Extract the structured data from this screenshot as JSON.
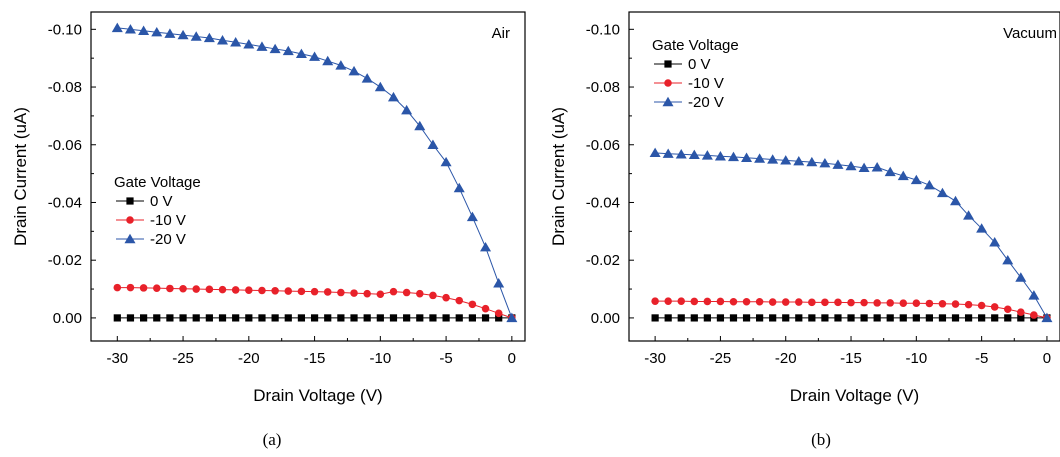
{
  "chart_data": [
    {
      "type": "line",
      "panel_label": "(a)",
      "annotation": "Air",
      "xlabel": "Drain Voltage (V)",
      "ylabel": "Drain Current (uA)",
      "xlim": [
        -32,
        1
      ],
      "ylim": [
        0.008,
        -0.106
      ],
      "x_ticks": [
        -30,
        -25,
        -20,
        -15,
        -10,
        -5,
        0
      ],
      "x_tick_labels": [
        "-30",
        "-25",
        "-20",
        "-15",
        "-10",
        "-5",
        "0"
      ],
      "y_ticks": [
        0.0,
        -0.02,
        -0.04,
        -0.06,
        -0.08,
        -0.1
      ],
      "y_tick_labels": [
        "0.00",
        "-0.02",
        "-0.04",
        "-0.06",
        "-0.08",
        "-0.10"
      ],
      "grid": false,
      "legend": {
        "title": "Gate Voltage",
        "placement": "center-left"
      },
      "x": [
        -30,
        -29,
        -28,
        -27,
        -26,
        -25,
        -24,
        -23,
        -22,
        -21,
        -20,
        -19,
        -18,
        -17,
        -16,
        -15,
        -14,
        -13,
        -12,
        -11,
        -10,
        -9,
        -8,
        -7,
        -6,
        -5,
        -4,
        -3,
        -2,
        -1,
        0
      ],
      "series": [
        {
          "name": "0 V",
          "color": "#000000",
          "marker": "square",
          "values": [
            0,
            0,
            0,
            0,
            0,
            0,
            0,
            0,
            0,
            0,
            0,
            0,
            0,
            0,
            0,
            0,
            0,
            0,
            0,
            0,
            0,
            0,
            0,
            0,
            0,
            0,
            0,
            0,
            0,
            0,
            0
          ]
        },
        {
          "name": "-10 V",
          "color": "#e8212a",
          "marker": "circle",
          "values": [
            -0.0105,
            -0.0105,
            -0.0104,
            -0.0103,
            -0.0102,
            -0.0101,
            -0.01,
            -0.0099,
            -0.0098,
            -0.0097,
            -0.0096,
            -0.0095,
            -0.0094,
            -0.0093,
            -0.0092,
            -0.0091,
            -0.009,
            -0.0088,
            -0.0086,
            -0.0084,
            -0.0082,
            -0.0091,
            -0.0088,
            -0.0084,
            -0.0078,
            -0.007,
            -0.006,
            -0.0047,
            -0.0032,
            -0.0016,
            0
          ]
        },
        {
          "name": "-20 V",
          "color": "#2b56a8",
          "marker": "triangle",
          "values": [
            -0.1005,
            -0.1,
            -0.0995,
            -0.099,
            -0.0985,
            -0.098,
            -0.0975,
            -0.097,
            -0.0962,
            -0.0955,
            -0.0948,
            -0.094,
            -0.0932,
            -0.0925,
            -0.0915,
            -0.0905,
            -0.089,
            -0.0875,
            -0.0855,
            -0.083,
            -0.08,
            -0.0765,
            -0.072,
            -0.0665,
            -0.06,
            -0.054,
            -0.045,
            -0.035,
            -0.0245,
            -0.012,
            0
          ]
        }
      ]
    },
    {
      "type": "line",
      "panel_label": "(b)",
      "annotation": "Vacuum",
      "xlabel": "Drain Voltage (V)",
      "ylabel": "Drain Current (uA)",
      "xlim": [
        -32,
        1
      ],
      "ylim": [
        0.008,
        -0.106
      ],
      "x_ticks": [
        -30,
        -25,
        -20,
        -15,
        -10,
        -5,
        0
      ],
      "x_tick_labels": [
        "-30",
        "-25",
        "-20",
        "-15",
        "-10",
        "-5",
        "0"
      ],
      "y_ticks": [
        0.0,
        -0.02,
        -0.04,
        -0.06,
        -0.08,
        -0.1
      ],
      "y_tick_labels": [
        "0.00",
        "-0.02",
        "-0.04",
        "-0.06",
        "-0.08",
        "-0.10"
      ],
      "grid": false,
      "legend": {
        "title": "Gate Voltage",
        "placement": "top-left"
      },
      "x": [
        -30,
        -29,
        -28,
        -27,
        -26,
        -25,
        -24,
        -23,
        -22,
        -21,
        -20,
        -19,
        -18,
        -17,
        -16,
        -15,
        -14,
        -13,
        -12,
        -11,
        -10,
        -9,
        -8,
        -7,
        -6,
        -5,
        -4,
        -3,
        -2,
        -1,
        0
      ],
      "series": [
        {
          "name": "0 V",
          "color": "#000000",
          "marker": "square",
          "values": [
            0,
            0,
            0,
            0,
            0,
            0,
            0,
            0,
            0,
            0,
            0,
            0,
            0,
            0,
            0,
            0,
            0,
            0,
            0,
            0,
            0,
            0,
            0,
            0,
            0,
            0,
            0,
            0,
            0,
            0,
            0
          ]
        },
        {
          "name": "-10 V",
          "color": "#e8212a",
          "marker": "circle",
          "values": [
            -0.0058,
            -0.0058,
            -0.0058,
            -0.0057,
            -0.0057,
            -0.0057,
            -0.0056,
            -0.0056,
            -0.0056,
            -0.0055,
            -0.0055,
            -0.0055,
            -0.0054,
            -0.0054,
            -0.0054,
            -0.0053,
            -0.0053,
            -0.0052,
            -0.0052,
            -0.0051,
            -0.0051,
            -0.005,
            -0.0049,
            -0.0048,
            -0.0046,
            -0.0043,
            -0.0038,
            -0.003,
            -0.002,
            -0.001,
            0
          ]
        },
        {
          "name": "-20 V",
          "color": "#2b56a8",
          "marker": "triangle",
          "values": [
            -0.0572,
            -0.0569,
            -0.0567,
            -0.0565,
            -0.0563,
            -0.056,
            -0.0558,
            -0.0555,
            -0.0552,
            -0.0549,
            -0.0546,
            -0.0543,
            -0.054,
            -0.0536,
            -0.0531,
            -0.0526,
            -0.052,
            -0.0522,
            -0.0506,
            -0.0492,
            -0.0478,
            -0.046,
            -0.0433,
            -0.0405,
            -0.0355,
            -0.031,
            -0.0262,
            -0.02,
            -0.014,
            -0.0078,
            0
          ]
        }
      ]
    }
  ]
}
